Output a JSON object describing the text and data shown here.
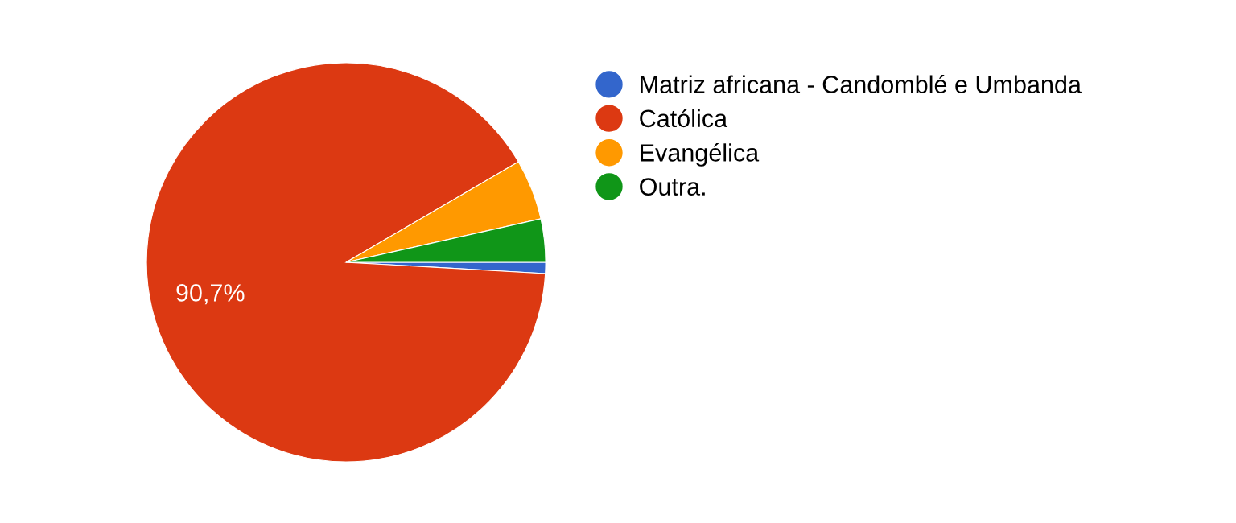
{
  "chart_data": {
    "type": "pie",
    "categories": [
      "Matriz africana - Candomblé e Umbanda",
      "Católica",
      "Evangélica",
      "Outra."
    ],
    "values": [
      0.9,
      90.7,
      4.9,
      3.5
    ],
    "colors": [
      "#3366cc",
      "#dc3912",
      "#ff9900",
      "#109618"
    ],
    "value_labels": [
      null,
      "90,7%",
      null,
      null
    ],
    "legend": "right"
  }
}
